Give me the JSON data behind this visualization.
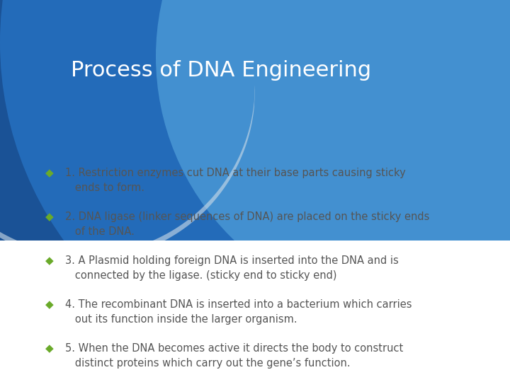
{
  "title": "Process of DNA Engineering",
  "title_color": "#ffffff",
  "title_fontsize": 22,
  "background_color": "#f0f4f8",
  "header_blue_dark": "#1a5296",
  "header_blue_mid": "#2876c8",
  "header_blue_light": "#5aaae0",
  "header_blue_lighter": "#7ec0ee",
  "wave_grey": "#c8d8e8",
  "bullet_color": "#6aaa2a",
  "text_color": "#555555",
  "bullet_items": [
    "1. Restriction enzymes cut DNA at their base parts causing sticky\n   ends to form.",
    "2. DNA ligase (linker sequences of DNA) are placed on the sticky ends\n   of the DNA.",
    "3. A Plasmid holding foreign DNA is inserted into the DNA and is\n   connected by the ligase. (sticky end to sticky end)",
    "4. The recombinant DNA is inserted into a bacterium which carries\n   out its function inside the larger organism.",
    "5. When the DNA becomes active it directs the body to construct\n   distinct proteins which carry out the gene’s function."
  ],
  "bullet_fontsize": 10.5,
  "figsize": [
    7.2,
    5.4
  ],
  "dpi": 100
}
